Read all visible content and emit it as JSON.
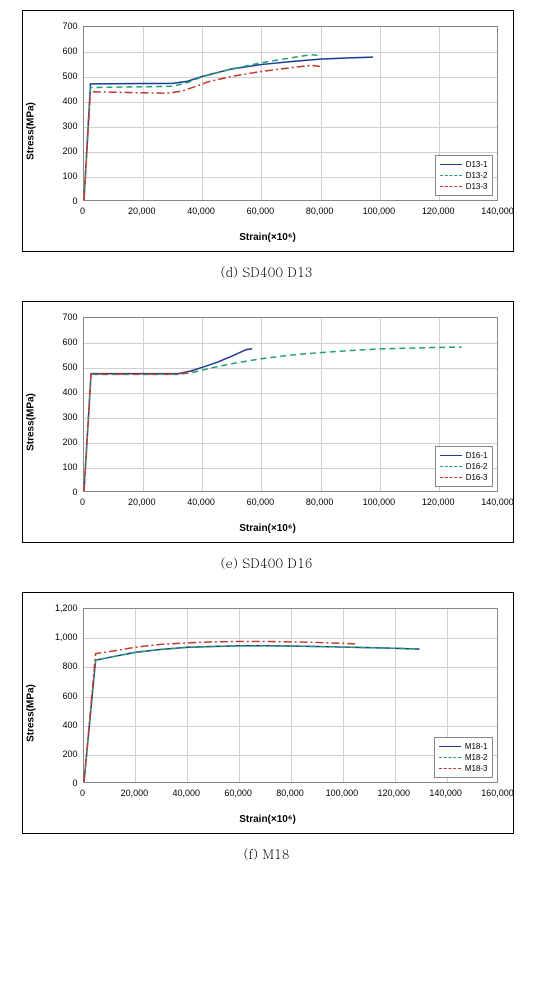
{
  "charts": [
    {
      "caption": "(d) SD400 D13",
      "ylabel": "Stress(MPa)",
      "xlabel": "Strain(×10⁶)",
      "xlim": [
        0,
        140000
      ],
      "ylim": [
        0,
        700
      ],
      "xtick_step": 20000,
      "ytick_step": 100,
      "xtick_format": "comma",
      "background_color": "#ffffff",
      "grid_color": "#d0d0d0",
      "border_color": "#888888",
      "label_fontsize": 10,
      "tick_fontsize": 9,
      "legend_fontsize": 8,
      "legend_position": "bottom-right",
      "series": [
        {
          "label": "D13-1",
          "color": "#1f3a93",
          "dash": "solid",
          "width": 1.5,
          "points": [
            [
              0,
              0
            ],
            [
              2200,
              470
            ],
            [
              30000,
              472
            ],
            [
              35000,
              480
            ],
            [
              40000,
              500
            ],
            [
              50000,
              530
            ],
            [
              60000,
              548
            ],
            [
              70000,
              560
            ],
            [
              80000,
              570
            ],
            [
              90000,
              575
            ],
            [
              98000,
              578
            ]
          ]
        },
        {
          "label": "D13-2",
          "color": "#1fa070",
          "dash": "dash",
          "width": 1.5,
          "points": [
            [
              0,
              0
            ],
            [
              2200,
              455
            ],
            [
              30000,
              460
            ],
            [
              35000,
              475
            ],
            [
              40000,
              498
            ],
            [
              50000,
              530
            ],
            [
              60000,
              555
            ],
            [
              70000,
              575
            ],
            [
              77000,
              588
            ],
            [
              80000,
              585
            ]
          ]
        },
        {
          "label": "D13-3",
          "color": "#c0392b",
          "dash": "dashdot",
          "width": 1.5,
          "points": [
            [
              0,
              0
            ],
            [
              2200,
              438
            ],
            [
              15000,
              435
            ],
            [
              28000,
              432
            ],
            [
              33000,
              440
            ],
            [
              38000,
              460
            ],
            [
              42000,
              478
            ],
            [
              50000,
              500
            ],
            [
              60000,
              520
            ],
            [
              70000,
              535
            ],
            [
              77000,
              545
            ],
            [
              80000,
              540
            ]
          ]
        }
      ]
    },
    {
      "caption": "(e) SD400 D16",
      "ylabel": "Stress(MPa)",
      "xlabel": "Strain(×10⁶)",
      "xlim": [
        0,
        140000
      ],
      "ylim": [
        0,
        700
      ],
      "xtick_step": 20000,
      "ytick_step": 100,
      "xtick_format": "comma",
      "background_color": "#ffffff",
      "grid_color": "#d0d0d0",
      "border_color": "#888888",
      "label_fontsize": 10,
      "tick_fontsize": 9,
      "legend_fontsize": 8,
      "legend_position": "bottom-right",
      "series": [
        {
          "label": "D16-1",
          "color": "#1f3a93",
          "dash": "solid",
          "width": 1.5,
          "points": [
            [
              0,
              0
            ],
            [
              2400,
              475
            ],
            [
              32000,
              475
            ],
            [
              36000,
              485
            ],
            [
              40000,
              500
            ],
            [
              45000,
              520
            ],
            [
              50000,
              545
            ],
            [
              55000,
              572
            ],
            [
              57000,
              575
            ]
          ]
        },
        {
          "label": "D16-2",
          "color": "#1fa070",
          "dash": "dash",
          "width": 1.5,
          "points": [
            [
              0,
              0
            ],
            [
              2400,
              472
            ],
            [
              32000,
              472
            ],
            [
              37000,
              480
            ],
            [
              42000,
              495
            ],
            [
              50000,
              515
            ],
            [
              60000,
              535
            ],
            [
              70000,
              550
            ],
            [
              80000,
              560
            ],
            [
              90000,
              568
            ],
            [
              100000,
              575
            ],
            [
              110000,
              578
            ],
            [
              120000,
              581
            ],
            [
              128000,
              582
            ]
          ]
        },
        {
          "label": "D16-3",
          "color": "#c0392b",
          "dash": "dashdot",
          "width": 1.5,
          "points": [
            [
              0,
              0
            ],
            [
              2400,
              473
            ],
            [
              32000,
              473
            ],
            [
              36000,
              482
            ],
            [
              38000,
              490
            ]
          ]
        }
      ]
    },
    {
      "caption": "(f) M18",
      "ylabel": "Stress(MPa)",
      "xlabel": "Strain(×10⁶)",
      "xlim": [
        0,
        160000
      ],
      "ylim": [
        0,
        1200
      ],
      "xtick_step": 20000,
      "ytick_step": 200,
      "xtick_format": "comma",
      "background_color": "#ffffff",
      "grid_color": "#d0d0d0",
      "border_color": "#888888",
      "label_fontsize": 10,
      "tick_fontsize": 9,
      "legend_fontsize": 8,
      "legend_position": "bottom-right",
      "series": [
        {
          "label": "M18-1",
          "color": "#1f3a93",
          "dash": "solid",
          "width": 1.5,
          "points": [
            [
              0,
              0
            ],
            [
              4500,
              845
            ],
            [
              10000,
              865
            ],
            [
              20000,
              900
            ],
            [
              30000,
              920
            ],
            [
              40000,
              935
            ],
            [
              50000,
              940
            ],
            [
              60000,
              945
            ],
            [
              70000,
              945
            ],
            [
              80000,
              943
            ],
            [
              90000,
              940
            ],
            [
              100000,
              936
            ],
            [
              110000,
              932
            ],
            [
              120000,
              928
            ],
            [
              130000,
              922
            ]
          ]
        },
        {
          "label": "M18-2",
          "color": "#1fa070",
          "dash": "dash",
          "width": 1.5,
          "points": [
            [
              0,
              0
            ],
            [
              4500,
              845
            ],
            [
              10000,
              865
            ],
            [
              20000,
              900
            ],
            [
              30000,
              920
            ],
            [
              40000,
              933
            ],
            [
              50000,
              940
            ],
            [
              60000,
              943
            ],
            [
              70000,
              944
            ],
            [
              80000,
              943
            ],
            [
              90000,
              940
            ],
            [
              100000,
              936
            ],
            [
              110000,
              932
            ],
            [
              120000,
              928
            ],
            [
              130000,
              922
            ]
          ]
        },
        {
          "label": "M18-3",
          "color": "#c0392b",
          "dash": "dashdot",
          "width": 1.5,
          "points": [
            [
              0,
              0
            ],
            [
              4500,
              890
            ],
            [
              10000,
              905
            ],
            [
              20000,
              935
            ],
            [
              30000,
              955
            ],
            [
              40000,
              965
            ],
            [
              50000,
              972
            ],
            [
              60000,
              975
            ],
            [
              70000,
              975
            ],
            [
              80000,
              972
            ],
            [
              90000,
              968
            ],
            [
              100000,
              962
            ],
            [
              105000,
              958
            ]
          ]
        }
      ]
    }
  ]
}
